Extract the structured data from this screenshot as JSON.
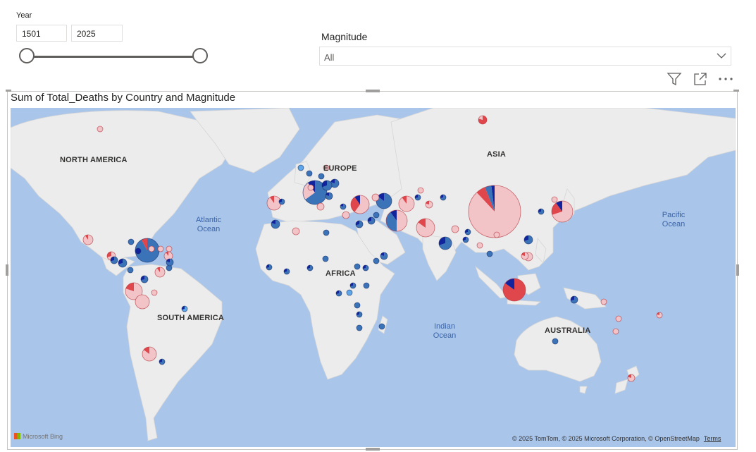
{
  "year_slicer": {
    "label": "Year",
    "start": "1501",
    "end": "2025"
  },
  "magnitude_slicer": {
    "label": "Magnitude",
    "selected": "All",
    "icon": "chevron-down-icon"
  },
  "visual_header": {
    "icons": [
      "filter-icon",
      "focus-mode-icon",
      "more-options-icon"
    ]
  },
  "visual": {
    "title": "Sum of Total_Deaths by Country and Magnitude"
  },
  "map": {
    "continent_labels": {
      "north_america": "NORTH AMERICA",
      "south_america": "SOUTH AMERICA",
      "europe": "EUROPE",
      "africa": "AFRICA",
      "asia": "ASIA",
      "australia": "AUSTRALIA"
    },
    "ocean_labels": {
      "atlantic_1": "Atlantic",
      "atlantic_2": "Ocean",
      "pacific_1": "Pacific",
      "pacific_2": "Ocean",
      "indian_1": "Indian",
      "indian_2": "Ocean"
    },
    "bing_logo": "Microsoft Bing",
    "attribution": "© 2025 TomTom, © 2025 Microsoft Corporation, © OpenStreetMap",
    "terms": "Terms",
    "colors": {
      "ocean": "#a9c5ea",
      "land": "#ececec",
      "pie_pink": "#f2c4c8",
      "pie_red": "#e0474c",
      "pie_blue": "#3b73b9",
      "pie_navy": "#12239e",
      "pie_lightblue": "#5ea7e8"
    }
  }
}
